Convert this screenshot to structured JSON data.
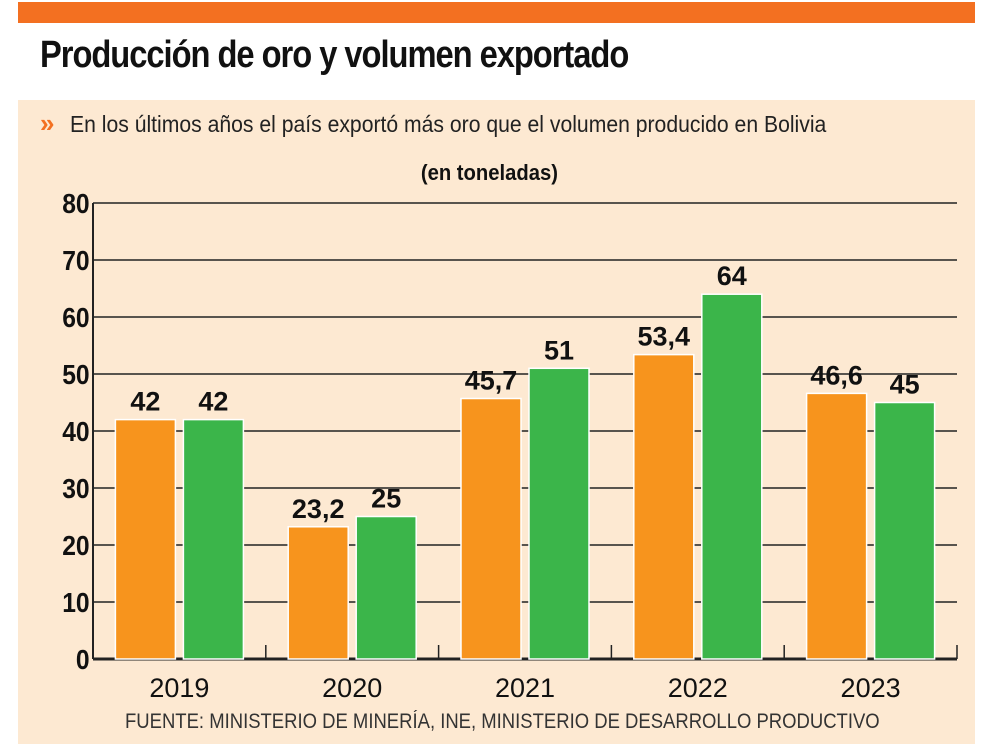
{
  "header": {
    "title": "Producción de oro y volumen exportado",
    "subtitle_marker": "»",
    "subtitle": "En los últimos años el país exportó más oro que el volumen producido en Bolivia",
    "unit": "(en toneladas)"
  },
  "footer": {
    "source": "FUENTE: MINISTERIO DE MINERÍA, INE, MINISTERIO DE DESARROLLO PRODUCTIVO"
  },
  "colors": {
    "top_bar": "#F37021",
    "background": "#FDE9D2",
    "series_1": "#F7941D",
    "series_2": "#3BB54A"
  },
  "chart_data": {
    "type": "bar",
    "title": "Producción de oro y volumen exportado",
    "ylabel": "(en toneladas)",
    "categories": [
      "2019",
      "2020",
      "2021",
      "2022",
      "2023"
    ],
    "series": [
      {
        "values": [
          42,
          23.2,
          45.7,
          53.4,
          46.6
        ],
        "labels": [
          "42",
          "23,2",
          "45,7",
          "53,4",
          "46,6"
        ],
        "color": "#F7941D"
      },
      {
        "values": [
          42,
          25,
          51,
          64,
          45
        ],
        "labels": [
          "42",
          "25",
          "51",
          "64",
          "45"
        ],
        "color": "#3BB54A"
      }
    ],
    "ylim": [
      0,
      80
    ],
    "yticks": [
      0,
      10,
      20,
      30,
      40,
      50,
      60,
      70,
      80
    ],
    "grid": true,
    "legend": "none"
  }
}
